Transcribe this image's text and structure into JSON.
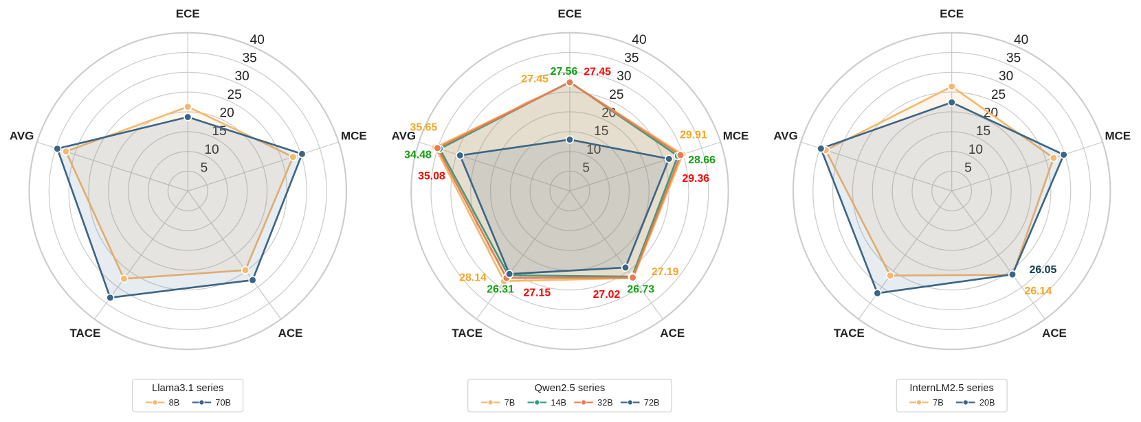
{
  "chart_data": [
    {
      "type": "radar",
      "categories": [
        "ECE",
        "MCE",
        "ACE",
        "TACE",
        "AVG"
      ],
      "ylim": [
        0,
        40
      ],
      "yticks": [
        5,
        10,
        15,
        20,
        25,
        30,
        35,
        40
      ],
      "grid": true,
      "legend_title": "Llama3.1 series",
      "legend": "bottom",
      "series": [
        {
          "name": "8B",
          "color": "#f5b86e",
          "values": [
            21.3,
            27.9,
            24.7,
            27.4,
            32.3
          ]
        },
        {
          "name": "70B",
          "color": "#3b6586",
          "values": [
            18.7,
            30.3,
            27.8,
            33.3,
            34.6
          ]
        }
      ]
    },
    {
      "type": "radar",
      "categories": [
        "ECE",
        "MCE",
        "ACE",
        "TACE",
        "AVG"
      ],
      "ylim": [
        0,
        40
      ],
      "yticks": [
        5,
        10,
        15,
        20,
        25,
        30,
        35,
        40
      ],
      "grid": true,
      "legend_title": "Qwen2.5 series",
      "legend": "bottom",
      "series": [
        {
          "name": "7B",
          "color": "#f5b86e",
          "label_color": "#f5a623",
          "show_value_labels": [
            true,
            true,
            true,
            true,
            true
          ],
          "values": [
            27.45,
            29.91,
            27.19,
            28.14,
            35.65
          ]
        },
        {
          "name": "14B",
          "color": "#2e9e7e",
          "label_color": "#11a011",
          "show_value_labels": [
            true,
            true,
            true,
            true,
            true
          ],
          "values": [
            27.56,
            28.66,
            26.73,
            26.31,
            34.48
          ]
        },
        {
          "name": "32B",
          "color": "#e67c52",
          "label_color": "#ff0000",
          "show_value_labels": [
            true,
            true,
            true,
            true,
            true
          ],
          "values": [
            27.45,
            29.36,
            27.02,
            27.15,
            35.08
          ]
        },
        {
          "name": "72B",
          "color": "#3b6586",
          "values": [
            13.0,
            26.3,
            23.9,
            25.9,
            29.1
          ]
        }
      ]
    },
    {
      "type": "radar",
      "categories": [
        "ECE",
        "MCE",
        "ACE",
        "TACE",
        "AVG"
      ],
      "ylim": [
        0,
        40
      ],
      "yticks": [
        5,
        10,
        15,
        20,
        25,
        30,
        35,
        40
      ],
      "grid": true,
      "legend_title": "InternLM2.5 series",
      "legend": "bottom",
      "series": [
        {
          "name": "7B",
          "color": "#f5b86e",
          "label_color": "#f5a623",
          "show_value_labels": [
            false,
            false,
            true,
            false,
            false
          ],
          "values": [
            26.4,
            27.0,
            26.14,
            26.4,
            33.4
          ]
        },
        {
          "name": "20B",
          "color": "#3b6586",
          "label_color": "#0d3b4e",
          "show_value_labels": [
            false,
            false,
            true,
            false,
            false
          ],
          "values": [
            22.4,
            29.7,
            26.05,
            31.9,
            34.7
          ]
        }
      ]
    }
  ]
}
